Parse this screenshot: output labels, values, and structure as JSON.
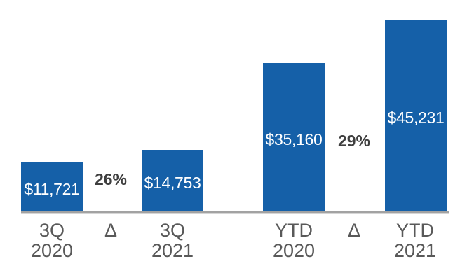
{
  "chart_data": {
    "type": "bar",
    "title": "",
    "categories": [
      "3Q 2020",
      "Δ",
      "3Q 2021",
      "YTD 2020",
      "Δ",
      "YTD 2021"
    ],
    "bars": [
      {
        "category_line1": "3Q",
        "category_line2": "2020",
        "value": 11721,
        "label": "$11,721"
      },
      {
        "category_line1": "3Q",
        "category_line2": "2021",
        "value": 14753,
        "label": "$14,753"
      },
      {
        "category_line1": "YTD",
        "category_line2": "2020",
        "value": 35160,
        "label": "$35,160"
      },
      {
        "category_line1": "YTD",
        "category_line2": "2021",
        "value": 45231,
        "label": "$45,231"
      }
    ],
    "deltas": [
      {
        "category": "Δ",
        "label": "26%"
      },
      {
        "category": "Δ",
        "label": "29%"
      }
    ],
    "ylim": [
      0,
      45231
    ],
    "grid": false,
    "legend": null,
    "axis_baseline": true,
    "colors": {
      "bar": "#1560a8",
      "value_label": "#ffffff",
      "delta_label": "#3f3f3f",
      "axis_label": "#595959",
      "axis_line": "#a2a2a2"
    }
  }
}
